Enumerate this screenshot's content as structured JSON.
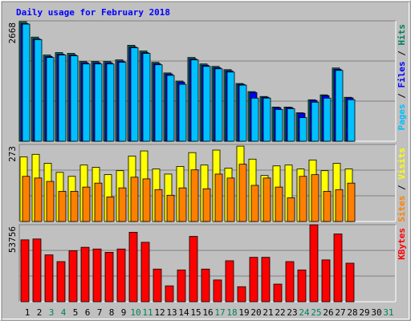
{
  "chart_data": [
    {
      "type": "bar",
      "title": "Daily usage for February 2018",
      "title_color": "#0000ff",
      "legend_separator": " / ",
      "categories": [
        "1",
        "2",
        "3",
        "4",
        "5",
        "6",
        "7",
        "8",
        "9",
        "10",
        "11",
        "12",
        "13",
        "14",
        "15",
        "16",
        "17",
        "18",
        "19",
        "20",
        "21",
        "22",
        "23",
        "24",
        "25",
        "26",
        "27",
        "28",
        "29",
        "30",
        "31"
      ],
      "category_colors": [
        "#000000",
        "#000000",
        "#00805c",
        "#00805c",
        "#000000",
        "#000000",
        "#000000",
        "#000000",
        "#000000",
        "#00805c",
        "#00805c",
        "#000000",
        "#000000",
        "#000000",
        "#000000",
        "#000000",
        "#00805c",
        "#00805c",
        "#000000",
        "#000000",
        "#000000",
        "#000000",
        "#000000",
        "#00805c",
        "#00805c",
        "#000000",
        "#000000",
        "#000000",
        "#000000",
        "#000000",
        "#00805c"
      ],
      "ylim": [
        0,
        2668
      ],
      "yticks": [
        2668
      ],
      "grid": true,
      "series": [
        {
          "name": "Hits",
          "color": "#00805c",
          "values": [
            2650,
            2308,
            1911,
            1965,
            1947,
            1767,
            1767,
            1767,
            1803,
            2127,
            2001,
            1749,
            1514,
            1334,
            1857,
            1713,
            1659,
            1587,
            1280,
            1100,
            992,
            757,
            757,
            631,
            919,
            1028,
            1623,
            974,
            null,
            null,
            null
          ]
        },
        {
          "name": "Files",
          "color": "#0000ff",
          "values": [
            2610,
            2270,
            1880,
            1930,
            1915,
            1740,
            1740,
            1740,
            1775,
            2090,
            1965,
            1720,
            1490,
            1310,
            1825,
            1685,
            1630,
            1560,
            1260,
            1080,
            975,
            745,
            745,
            620,
            905,
            1010,
            1595,
            960,
            null,
            null,
            null
          ]
        },
        {
          "name": "Pages",
          "color": "#00c0ff",
          "values": [
            2596,
            2254,
            1857,
            1911,
            1893,
            1713,
            1713,
            1713,
            1749,
            2073,
            1947,
            1695,
            1460,
            1262,
            1803,
            1659,
            1605,
            1533,
            1244,
            956,
            956,
            703,
            721,
            523,
            865,
            956,
            1569,
            920,
            null,
            null,
            null
          ]
        }
      ]
    },
    {
      "type": "bar",
      "ylim": [
        0,
        273
      ],
      "yticks": [
        273
      ],
      "grid": true,
      "series": [
        {
          "name": "Visits",
          "color": "#ffff00",
          "values": [
            229,
            238,
            206,
            174,
            160,
            200,
            192,
            166,
            180,
            232,
            250,
            186,
            168,
            195,
            244,
            200,
            253,
            189,
            267,
            221,
            163,
            197,
            200,
            186,
            218,
            180,
            206,
            186,
            null,
            null,
            null
          ]
        },
        {
          "name": "Sites",
          "color": "#ff8000",
          "values": [
            160,
            154,
            142,
            107,
            107,
            122,
            136,
            87,
            119,
            157,
            151,
            113,
            93,
            119,
            183,
            116,
            168,
            154,
            203,
            128,
            154,
            122,
            84,
            160,
            166,
            107,
            113,
            136,
            null,
            null,
            null
          ]
        }
      ]
    },
    {
      "type": "bar",
      "ylim": [
        0,
        53756
      ],
      "yticks": [
        53756
      ],
      "grid": true,
      "series": [
        {
          "name": "KBytes",
          "color": "#ff0000",
          "values": [
            43200,
            43800,
            32700,
            28000,
            35600,
            38000,
            36800,
            34500,
            36800,
            48500,
            41500,
            22800,
            11100,
            22200,
            45600,
            22800,
            15200,
            28600,
            10500,
            31000,
            31000,
            12300,
            28000,
            22200,
            53700,
            29200,
            47300,
            26900,
            null,
            null,
            null
          ]
        }
      ]
    }
  ]
}
